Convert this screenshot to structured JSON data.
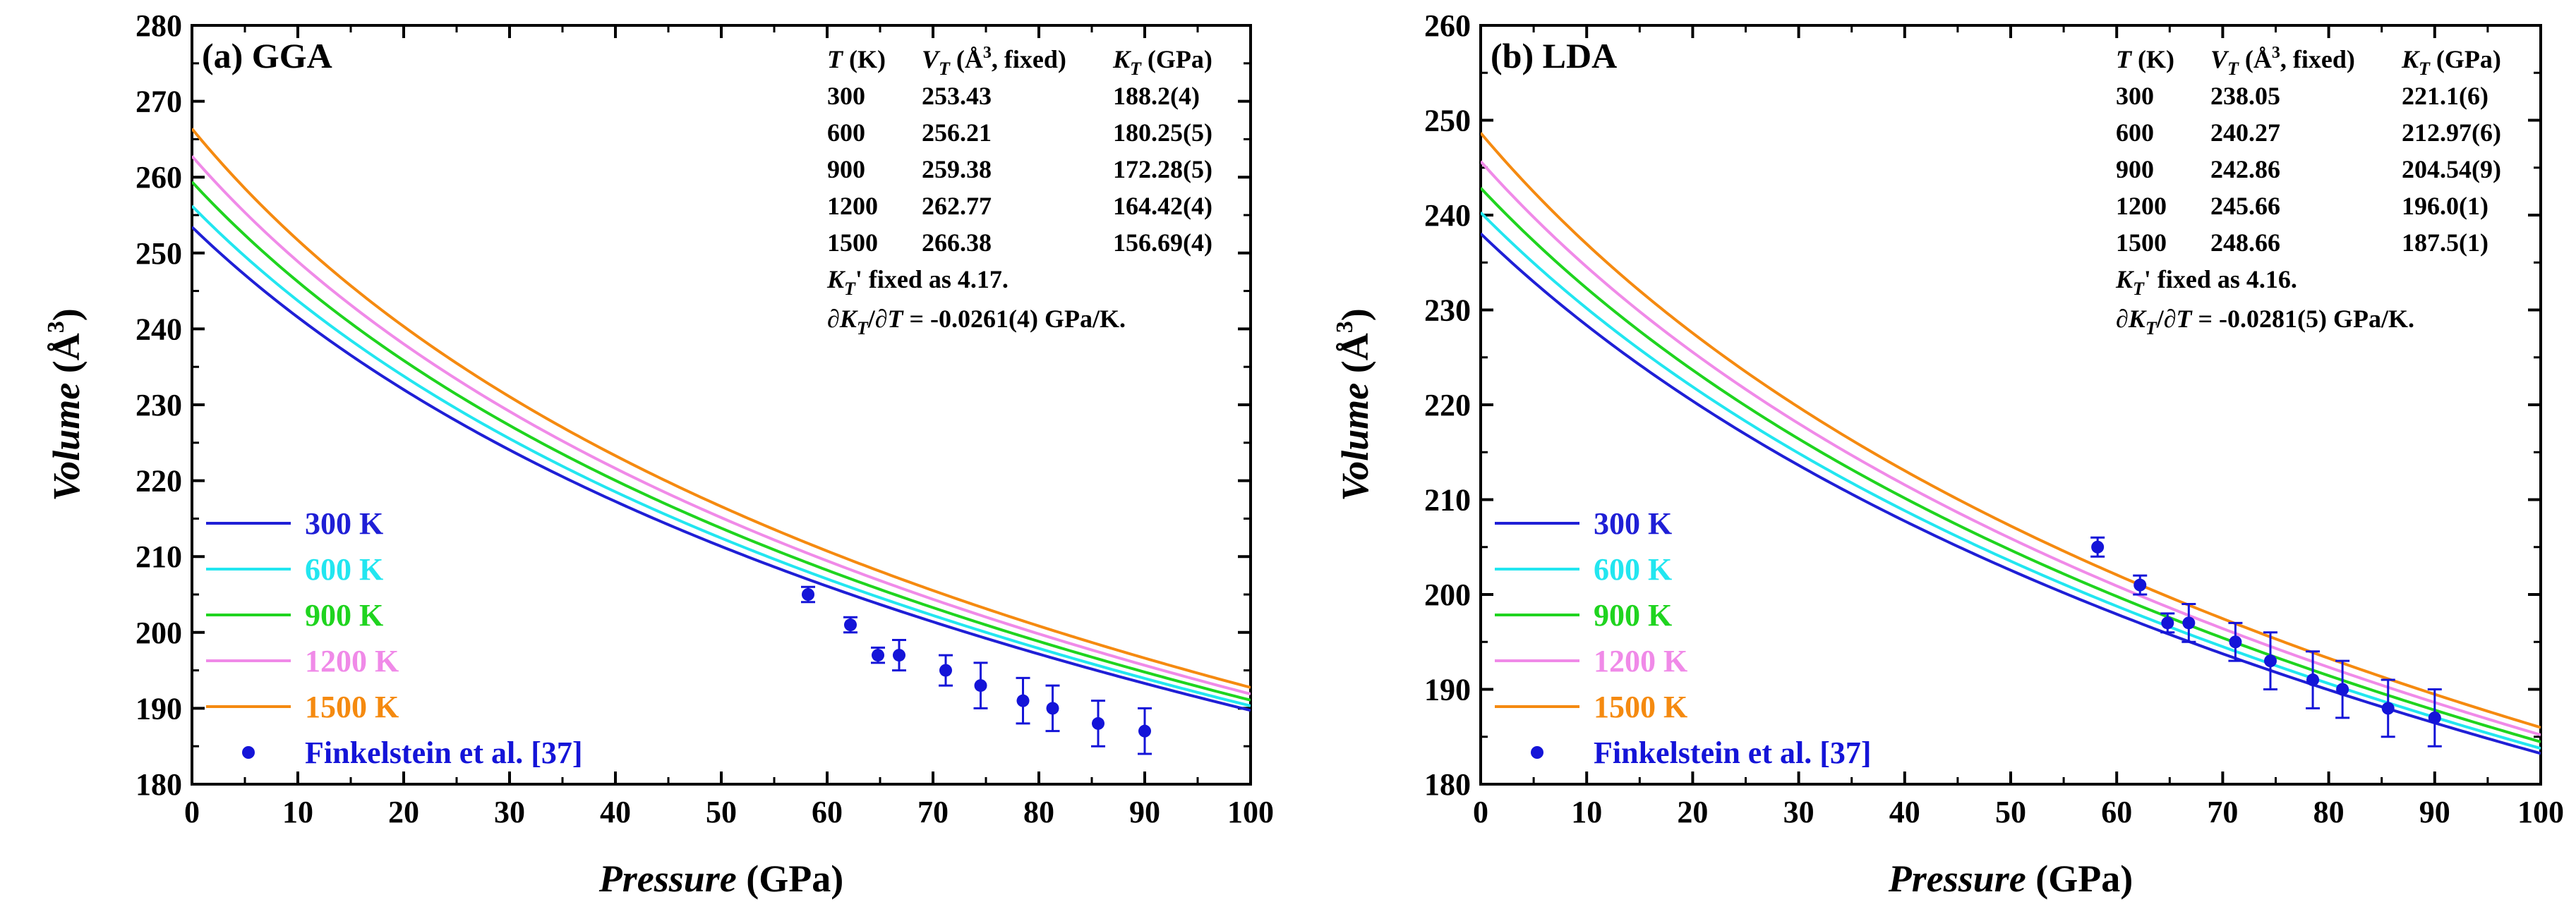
{
  "chart_data": [
    {
      "type": "line",
      "panel_label": "(a) GGA",
      "xlabel_italic": "Pressure",
      "xlabel_unit": "(GPa)",
      "ylabel_italic": "Volume",
      "ylabel_unit_open": "(Å",
      "ylabel_unit_sup": "3",
      "ylabel_unit_close": ")",
      "xlim": [
        0,
        100
      ],
      "ylim": [
        180,
        280
      ],
      "xticks": [
        "0",
        "10",
        "20",
        "30",
        "40",
        "50",
        "60",
        "70",
        "80",
        "90",
        "100"
      ],
      "yticks": [
        "180",
        "190",
        "200",
        "210",
        "220",
        "230",
        "240",
        "250",
        "260",
        "270",
        "280"
      ],
      "legend_position": "bottom-left",
      "series": [
        {
          "name": "300 K",
          "color": "#1f1fd6",
          "V0": 253.43,
          "K0": 188.2,
          "Kp": 4.17
        },
        {
          "name": "600 K",
          "color": "#22e6f0",
          "V0": 256.21,
          "K0": 180.25,
          "Kp": 4.17
        },
        {
          "name": "900 K",
          "color": "#1fd41f",
          "V0": 259.38,
          "K0": 172.28,
          "Kp": 4.17
        },
        {
          "name": "1200 K",
          "color": "#f08ae8",
          "V0": 262.77,
          "K0": 164.42,
          "Kp": 4.17
        },
        {
          "name": "1500 K",
          "color": "#f58a10",
          "V0": 266.38,
          "K0": 156.69,
          "Kp": 4.17
        }
      ],
      "experiment": {
        "name": "Finkelstein et al. [37]",
        "color": "#1414d8",
        "points": [
          {
            "x": 58.2,
            "y": 205,
            "err": 1
          },
          {
            "x": 62.2,
            "y": 201,
            "err": 1
          },
          {
            "x": 64.8,
            "y": 197,
            "err": 1
          },
          {
            "x": 66.8,
            "y": 197,
            "err": 2
          },
          {
            "x": 71.2,
            "y": 195,
            "err": 2
          },
          {
            "x": 74.5,
            "y": 193,
            "err": 3
          },
          {
            "x": 78.5,
            "y": 191,
            "err": 3
          },
          {
            "x": 81.3,
            "y": 190,
            "err": 3
          },
          {
            "x": 85.6,
            "y": 188,
            "err": 3
          },
          {
            "x": 90.0,
            "y": 187,
            "err": 3
          }
        ]
      },
      "table": {
        "head_T": "T",
        "head_T_unit": " (K)",
        "head_V": "V",
        "head_V_sub": "T",
        "head_V_unit_a": " (Å",
        "head_V_unit_sup": "3",
        "head_V_unit_b": ", fixed)",
        "head_K": "K",
        "head_K_sub": "T",
        "head_K_unit": " (GPa)",
        "rows": [
          [
            "300",
            "253.43",
            "188.2(4)"
          ],
          [
            "600",
            "256.21",
            "180.25(5)"
          ],
          [
            "900",
            "259.38",
            "172.28(5)"
          ],
          [
            "1200",
            "262.77",
            "164.42(4)"
          ],
          [
            "1500",
            "266.38",
            "156.69(4)"
          ]
        ],
        "note1_K": "K",
        "note1_sub": "T",
        "note1_rest": "' fixed as 4.17.",
        "note2_prefix": "∂",
        "note2_K": "K",
        "note2_sub": "T",
        "note2_mid": "/∂",
        "note2_T": "T",
        "note2_rest": " = -0.0261(4) GPa/K."
      }
    },
    {
      "type": "line",
      "panel_label": "(b) LDA",
      "xlabel_italic": "Pressure",
      "xlabel_unit": "(GPa)",
      "ylabel_italic": "Volume",
      "ylabel_unit_open": "(Å",
      "ylabel_unit_sup": "3",
      "ylabel_unit_close": ")",
      "xlim": [
        0,
        100
      ],
      "ylim": [
        180,
        260
      ],
      "xticks": [
        "0",
        "10",
        "20",
        "30",
        "40",
        "50",
        "60",
        "70",
        "80",
        "90",
        "100"
      ],
      "yticks": [
        "180",
        "190",
        "200",
        "210",
        "220",
        "230",
        "240",
        "250",
        "260"
      ],
      "legend_position": "bottom-left",
      "series": [
        {
          "name": "300 K",
          "color": "#1f1fd6",
          "V0": 238.05,
          "K0": 221.1,
          "Kp": 4.16
        },
        {
          "name": "600 K",
          "color": "#22e6f0",
          "V0": 240.27,
          "K0": 212.97,
          "Kp": 4.16
        },
        {
          "name": "900 K",
          "color": "#1fd41f",
          "V0": 242.86,
          "K0": 204.54,
          "Kp": 4.16
        },
        {
          "name": "1200 K",
          "color": "#f08ae8",
          "V0": 245.66,
          "K0": 196.0,
          "Kp": 4.16
        },
        {
          "name": "1500 K",
          "color": "#f58a10",
          "V0": 248.66,
          "K0": 187.5,
          "Kp": 4.16
        }
      ],
      "experiment": {
        "name": "Finkelstein et al. [37]",
        "color": "#1414d8",
        "points": [
          {
            "x": 58.2,
            "y": 205,
            "err": 1
          },
          {
            "x": 62.2,
            "y": 201,
            "err": 1
          },
          {
            "x": 64.8,
            "y": 197,
            "err": 1
          },
          {
            "x": 66.8,
            "y": 197,
            "err": 2
          },
          {
            "x": 71.2,
            "y": 195,
            "err": 2
          },
          {
            "x": 74.5,
            "y": 193,
            "err": 3
          },
          {
            "x": 78.5,
            "y": 191,
            "err": 3
          },
          {
            "x": 81.3,
            "y": 190,
            "err": 3
          },
          {
            "x": 85.6,
            "y": 188,
            "err": 3
          },
          {
            "x": 90.0,
            "y": 187,
            "err": 3
          }
        ]
      },
      "table": {
        "head_T": "T",
        "head_T_unit": " (K)",
        "head_V": "V",
        "head_V_sub": "T",
        "head_V_unit_a": " (Å",
        "head_V_unit_sup": "3",
        "head_V_unit_b": ", fixed)",
        "head_K": "K",
        "head_K_sub": "T",
        "head_K_unit": " (GPa)",
        "rows": [
          [
            "300",
            "238.05",
            "221.1(6)"
          ],
          [
            "600",
            "240.27",
            "212.97(6)"
          ],
          [
            "900",
            "242.86",
            "204.54(9)"
          ],
          [
            "1200",
            "245.66",
            "196.0(1)"
          ],
          [
            "1500",
            "248.66",
            "187.5(1)"
          ]
        ],
        "note1_K": "K",
        "note1_sub": "T",
        "note1_rest": "' fixed as 4.16.",
        "note2_prefix": "∂",
        "note2_K": "K",
        "note2_sub": "T",
        "note2_mid": "/∂",
        "note2_T": "T",
        "note2_rest": " = -0.0281(5) GPa/K."
      }
    }
  ]
}
